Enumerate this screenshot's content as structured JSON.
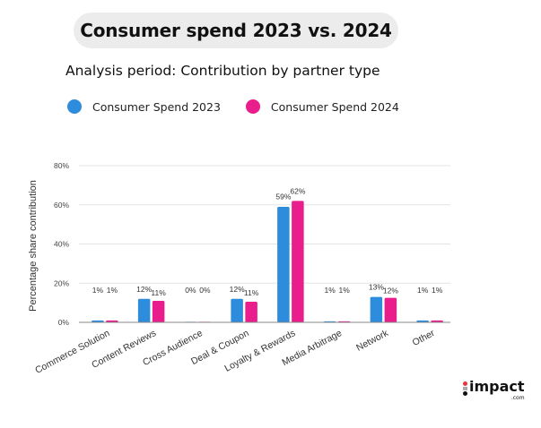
{
  "header": {
    "title": "Consumer spend 2023 vs. 2024",
    "subtitle": "Analysis period: Contribution by partner type"
  },
  "legend": [
    {
      "label": "Consumer Spend 2023",
      "color": "#2d8cdc"
    },
    {
      "label": "Consumer Spend 2024",
      "color": "#e91e8c"
    }
  ],
  "logo": {
    "word": "impact",
    "suffix": ".com"
  },
  "chart_data": {
    "type": "bar",
    "title": "Consumer spend 2023 vs. 2024",
    "subtitle": "Analysis period: Contribution by partner type",
    "xlabel": "",
    "ylabel": "Percentage share contribution",
    "ylim": [
      0,
      80
    ],
    "yticks": [
      0,
      20,
      40,
      60,
      80
    ],
    "ytick_labels": [
      "0%",
      "20%",
      "40%",
      "60%",
      "80%"
    ],
    "grid": true,
    "legend_position": "top-left",
    "categories": [
      "Commerce Solution",
      "Content Reviews",
      "Cross Audience",
      "Deal & Coupon",
      "Loyalty & Rewards",
      "Media Arbitrage",
      "Network",
      "Other"
    ],
    "series": [
      {
        "name": "Consumer Spend 2023",
        "color": "#2d8cdc",
        "values": [
          1,
          12,
          0,
          12,
          59,
          0.5,
          13,
          1
        ],
        "labels": [
          "1%",
          "12%",
          "0%",
          "12%",
          "59%",
          "1%",
          "13%",
          "1%"
        ]
      },
      {
        "name": "Consumer Spend 2024",
        "color": "#e91e8c",
        "values": [
          1,
          11,
          0,
          10.5,
          62,
          0.5,
          12.5,
          1
        ],
        "labels": [
          "1%",
          "11%",
          "0%",
          "11%",
          "62%",
          "1%",
          "12%",
          "1%"
        ]
      }
    ]
  }
}
